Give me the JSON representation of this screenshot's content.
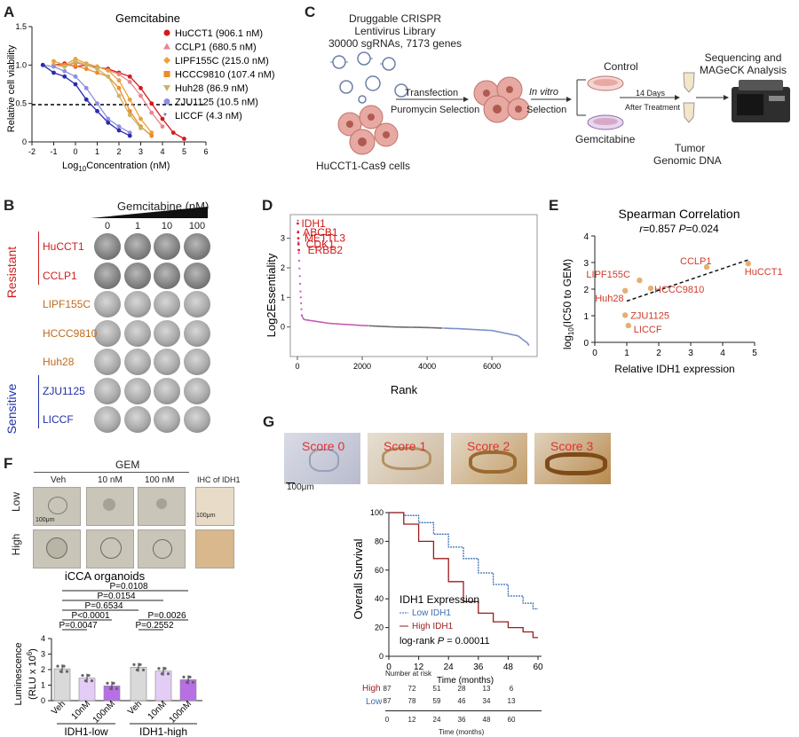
{
  "panels": {
    "a": "A",
    "b": "B",
    "c": "C",
    "d": "D",
    "e": "E",
    "f": "F",
    "g": "G"
  },
  "a": {
    "title": "Gemcitabine",
    "ylabel": "Relative cell viability",
    "xlabel_pre": "Log",
    "xlabel_sub": "10",
    "xlabel_post": "Concentration (nM)",
    "xticks": [
      "-2",
      "-1",
      "0",
      "1",
      "2",
      "3",
      "4",
      "5",
      "6"
    ],
    "yticks": [
      "0",
      "0.5",
      "1.0",
      "1.5"
    ],
    "legend": [
      {
        "label": "HuCCT1 (906.1 nM)",
        "color": "#d7191c",
        "marker": "circle"
      },
      {
        "label": "CCLP1 (680.5 nM)",
        "color": "#e8868e",
        "marker": "triangle"
      },
      {
        "label": "LIPF155C (215.0 nM)",
        "color": "#e9a23b",
        "marker": "diamond"
      },
      {
        "label": "HCCC9810 (107.4 nM)",
        "color": "#f08a24",
        "marker": "square"
      },
      {
        "label": "Huh28 (86.9 nM)",
        "color": "#c9b46a",
        "marker": "triangle-down"
      },
      {
        "label": "ZJU1125 (10.5 nM)",
        "color": "#8c8fe0",
        "marker": "circle"
      },
      {
        "label": "LICCF (4.3 nM)",
        "color": "#2b2bb0",
        "marker": "star"
      }
    ]
  },
  "chart_data": [
    {
      "type": "line",
      "title": "Gemcitabine",
      "xlabel": "Log10Concentration (nM)",
      "ylabel": "Relative cell viability",
      "xlim": [
        -2,
        6
      ],
      "ylim": [
        0,
        1.5
      ],
      "reference_line": 0.5,
      "x": [
        -1.5,
        -1,
        -0.5,
        0,
        0.5,
        1,
        1.5,
        2,
        2.5,
        3,
        3.5,
        4,
        4.5,
        5
      ],
      "series": [
        {
          "name": "HuCCT1 (906.1 nM)",
          "values": [
            null,
            1.0,
            1.02,
            0.98,
            1.0,
            0.97,
            0.95,
            0.9,
            0.85,
            0.7,
            0.5,
            0.3,
            0.12,
            0.04
          ]
        },
        {
          "name": "CCLP1 (680.5 nM)",
          "values": [
            null,
            1.0,
            0.98,
            1.03,
            1.0,
            0.98,
            0.93,
            0.88,
            0.78,
            0.6,
            0.38,
            0.2,
            null,
            null
          ]
        },
        {
          "name": "LIPF155C (215.0 nM)",
          "values": [
            null,
            1.05,
            1.0,
            1.08,
            1.02,
            0.98,
            0.93,
            0.8,
            0.55,
            0.3,
            0.12,
            null,
            null,
            null
          ]
        },
        {
          "name": "HCCC9810 (107.4 nM)",
          "values": [
            null,
            1.0,
            1.0,
            0.99,
            0.95,
            0.9,
            0.85,
            0.7,
            0.4,
            0.2,
            0.08,
            null,
            null,
            null
          ]
        },
        {
          "name": "Huh28 (86.9 nM)",
          "values": [
            null,
            1.0,
            0.98,
            1.05,
            1.0,
            0.95,
            0.85,
            0.6,
            0.35,
            0.18,
            null,
            null,
            null,
            null
          ]
        },
        {
          "name": "ZJU1125 (10.5 nM)",
          "values": [
            1.0,
            0.98,
            0.92,
            0.85,
            0.7,
            0.5,
            0.3,
            0.2,
            0.12,
            null,
            null,
            null,
            null,
            null
          ]
        },
        {
          "name": "LICCF (4.3 nM)",
          "values": [
            1.0,
            0.9,
            0.85,
            0.75,
            0.55,
            0.4,
            0.25,
            0.15,
            0.08,
            null,
            null,
            null,
            null,
            null
          ]
        }
      ]
    },
    {
      "type": "scatter",
      "xlabel": "Rank",
      "ylabel": "Log2Essentiality",
      "xlim": [
        0,
        7200
      ],
      "ylim": [
        -1,
        3.8
      ],
      "labeled_points": [
        {
          "name": "IDH1",
          "x": 12,
          "y": 3.5
        },
        {
          "name": "ABCB1",
          "x": 20,
          "y": 3.2
        },
        {
          "name": "METTL3",
          "x": 28,
          "y": 3.0
        },
        {
          "name": "CDK1",
          "x": 35,
          "y": 2.8
        },
        {
          "name": "ERBB2",
          "x": 45,
          "y": 2.6
        }
      ],
      "curve": [
        [
          0,
          3.6
        ],
        [
          30,
          2.5
        ],
        [
          80,
          1.2
        ],
        [
          120,
          0.4
        ],
        [
          200,
          0.25
        ],
        [
          1000,
          0.12
        ],
        [
          2000,
          0.05
        ],
        [
          3000,
          0.0
        ],
        [
          4000,
          -0.02
        ],
        [
          5000,
          -0.06
        ],
        [
          6000,
          -0.12
        ],
        [
          6800,
          -0.3
        ],
        [
          7100,
          -0.55
        ],
        [
          7173,
          -0.7
        ]
      ],
      "segments": [
        {
          "name": "",
          "from": 0,
          "to": 2200,
          "color": "#c85ab4"
        },
        {
          "name": "",
          "from": 2200,
          "to": 4500,
          "color": "#6b6b6b"
        },
        {
          "name": "",
          "from": 4500,
          "to": 7173,
          "color": "#7a90c8"
        }
      ]
    },
    {
      "type": "scatter",
      "title": "Spearman Correlation",
      "xlabel": "Relative IDH1 expression",
      "ylabel": "log10(IC50 to GEM)",
      "xlim": [
        0,
        5
      ],
      "ylim": [
        0,
        4
      ],
      "points": [
        {
          "name": "HuCCT1",
          "x": 4.8,
          "y": 2.96
        },
        {
          "name": "CCLP1",
          "x": 3.5,
          "y": 2.83
        },
        {
          "name": "LIPF155C",
          "x": 1.4,
          "y": 2.33
        },
        {
          "name": "HCCC9810",
          "x": 1.75,
          "y": 2.03
        },
        {
          "name": "Huh28",
          "x": 0.95,
          "y": 1.94
        },
        {
          "name": "ZJU1125",
          "x": 0.95,
          "y": 1.02
        },
        {
          "name": "LICCF",
          "x": 1.05,
          "y": 0.63
        }
      ],
      "trend": [
        [
          1.0,
          1.55
        ],
        [
          4.8,
          3.1
        ]
      ]
    },
    {
      "type": "bar",
      "title": "iCCA organoids",
      "ylabel": "Luminescence (RLU x 10^6)",
      "ylim": [
        0,
        4
      ],
      "categories": [
        "Veh",
        "10nM",
        "100nM",
        "Veh",
        "10nM",
        "100nM"
      ],
      "groups": [
        "IDH1-low",
        "IDH1-high"
      ],
      "values": [
        2.05,
        1.45,
        0.95,
        2.15,
        1.9,
        1.35
      ],
      "colors": [
        "#d9d9d9",
        "#e3cdf5",
        "#b86fe6",
        "#d9d9d9",
        "#e3cdf5",
        "#b86fe6"
      ],
      "comparisons": [
        "P=0.0108",
        "P=0.0154",
        "P=0.6534",
        "P<0.0001",
        "P=0.0047",
        "P=0.0026",
        "P=0.2552"
      ]
    },
    {
      "type": "line",
      "xlabel": "Time (months)",
      "ylabel": "Overall Survival",
      "xlim": [
        0,
        60
      ],
      "ylim": [
        0,
        100
      ],
      "series": [
        {
          "name": "Low IDH1",
          "color": "#3b6db3",
          "x": [
            0,
            6,
            12,
            18,
            24,
            30,
            36,
            42,
            48,
            54,
            58,
            60
          ],
          "values": [
            100,
            98,
            93,
            85,
            76,
            68,
            58,
            50,
            42,
            37,
            33,
            33
          ]
        },
        {
          "name": "High IDH1",
          "color": "#9e1b1b",
          "x": [
            0,
            6,
            12,
            18,
            24,
            30,
            36,
            42,
            48,
            54,
            58,
            60
          ],
          "values": [
            100,
            92,
            80,
            68,
            52,
            38,
            30,
            24,
            20,
            17,
            13,
            13
          ]
        }
      ]
    }
  ],
  "b": {
    "title": "Gemcitabine (nM)",
    "doses": [
      "0",
      "1",
      "10",
      "100"
    ],
    "lines": [
      {
        "name": "HuCCT1",
        "color": "#cf1d1d"
      },
      {
        "name": "CCLP1",
        "color": "#cf1d1d"
      },
      {
        "name": "LIPF155C",
        "color": "#c06a1d"
      },
      {
        "name": "HCCC9810",
        "color": "#c06a1d"
      },
      {
        "name": "Huh28",
        "color": "#c06a1d"
      },
      {
        "name": "ZJU1125",
        "color": "#1f2fa8"
      },
      {
        "name": "LICCF",
        "color": "#1f2fa8"
      }
    ],
    "resistant": "Resistant",
    "sensitive": "Sensitive"
  },
  "c": {
    "library": [
      "Druggable CRISPR",
      "Lentivirus Library",
      "30000 sgRNAs, 7173 genes"
    ],
    "transfection": "Transfection",
    "puromycin": "Puromycin Selection",
    "cells": "HuCCT1-Cas9 cells",
    "invitro": "In vitro",
    "selection": "Selection",
    "control": "Control",
    "gemcitabine": "Gemcitabine",
    "days": "14 Days",
    "after": "After Treatment",
    "tumor": "Tumor",
    "dna": "Genomic DNA",
    "seq": [
      "Sequencing and",
      "MAGeCK Analysis"
    ]
  },
  "d": {
    "ylabel": "Log2Essentiality",
    "xlabel": "Rank",
    "xticks": [
      "0",
      "2000",
      "4000",
      "6000"
    ],
    "yticks": [
      "0",
      "1",
      "2",
      "3"
    ],
    "genes": [
      "IDH1",
      "ABCB1",
      "METTL3",
      "CDK1",
      "ERBB2"
    ]
  },
  "e": {
    "title": "Spearman Correlation",
    "stats_r": "r",
    "stats_rest": "=0.857  ",
    "stats_p": "P",
    "stats_p_rest": "=0.024",
    "ylabel_pre": "log",
    "ylabel_sub": "10",
    "ylabel_post": "(IC50 to GEM)",
    "xlabel": "Relative IDH1 expression",
    "xticks": [
      "0",
      "1",
      "2",
      "3",
      "4",
      "5"
    ],
    "yticks": [
      "0",
      "1",
      "2",
      "3",
      "4"
    ]
  },
  "f": {
    "gem": "GEM",
    "cols": [
      "Veh",
      "10 nM",
      "100 nM"
    ],
    "ihc": "IHC of IDH1",
    "rows": [
      "Low",
      "High"
    ],
    "scale1": "100μm",
    "scale2": "100μm",
    "title": "iCCA organoids",
    "ylabel_main": "Luminescence",
    "ylabel_unit": "(RLU x 10",
    "ylabel_exp": "6",
    "ylabel_close": ")",
    "yticks": [
      "0",
      "1",
      "2",
      "3",
      "4"
    ],
    "bar_labels": [
      "Veh",
      "10nM",
      "100nM",
      "Veh",
      "10nM",
      "100nM"
    ],
    "groups": [
      "IDH1-low",
      "IDH1-high"
    ],
    "pvals": [
      "P=0.0108",
      "P=0.0154",
      "P=0.6534",
      "P<0.0001",
      "P=0.0047",
      "P=0.0026",
      "P=0.2552"
    ]
  },
  "g": {
    "scores": [
      "Score 0",
      "Score 1",
      "Score 2",
      "Score 3"
    ],
    "scale": "100μm",
    "ylabel": "Overall Survival",
    "xlabel": "Time (months)",
    "yticks": [
      "0",
      "20",
      "40",
      "60",
      "80",
      "100"
    ],
    "xticks": [
      "0",
      "12",
      "24",
      "36",
      "48",
      "60"
    ],
    "legend_title": "IDH1 Expression",
    "low": "Low IDH1",
    "high": "High IDH1",
    "logrank_pre": "log-rank ",
    "logrank_p": "P",
    "logrank_val": " = 0.00011",
    "risk_title": "Number at risk",
    "risk_high_label": "High",
    "risk_low_label": "Low",
    "risk_high": [
      "87",
      "72",
      "51",
      "28",
      "13",
      "6"
    ],
    "risk_low": [
      "87",
      "78",
      "59",
      "46",
      "34",
      "13"
    ],
    "risk_xticks": [
      "0",
      "12",
      "24",
      "36",
      "48",
      "60"
    ],
    "risk_xlabel": "Time (months)"
  }
}
